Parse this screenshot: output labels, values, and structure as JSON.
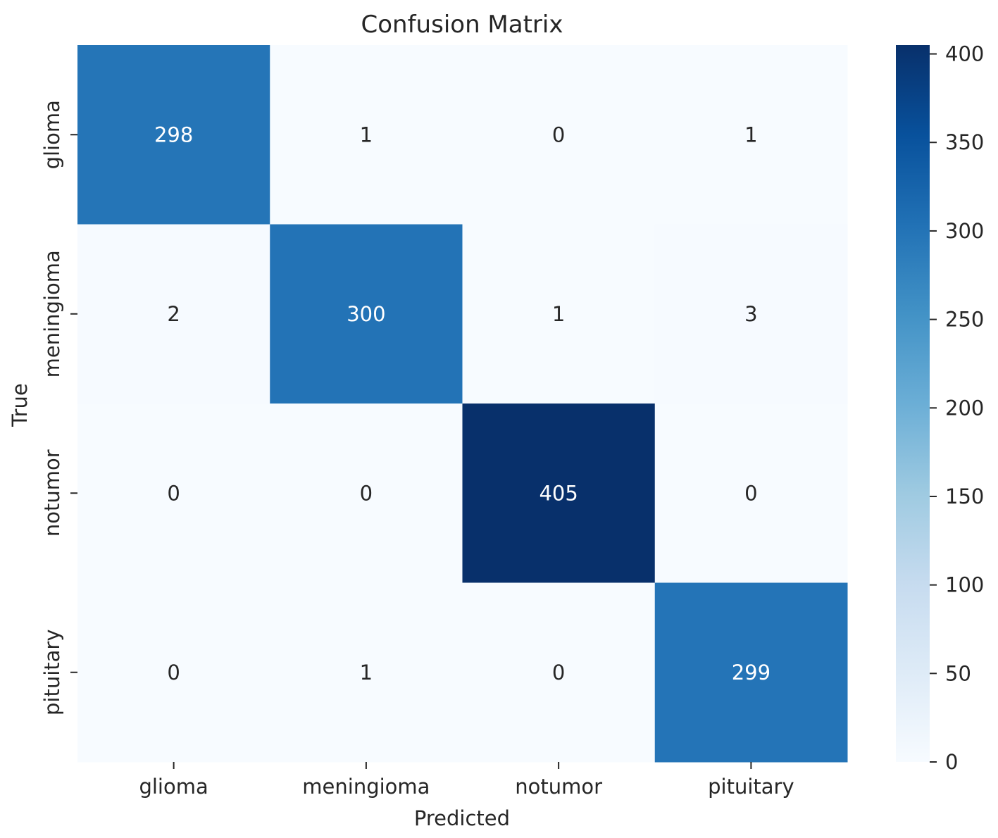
{
  "chart_data": {
    "type": "heatmap",
    "title": "Confusion Matrix",
    "xlabel": "Predicted",
    "ylabel": "True",
    "x_categories": [
      "glioma",
      "meningioma",
      "notumor",
      "pituitary"
    ],
    "y_categories": [
      "glioma",
      "meningioma",
      "notumor",
      "pituitary"
    ],
    "values": [
      [
        298,
        1,
        0,
        1
      ],
      [
        2,
        300,
        1,
        3
      ],
      [
        0,
        0,
        405,
        0
      ],
      [
        0,
        1,
        0,
        299
      ]
    ],
    "colormap": "Blues",
    "vmin": 0,
    "vmax": 405,
    "colorbar_ticks": [
      0,
      50,
      100,
      150,
      200,
      250,
      300,
      350,
      400
    ],
    "colorbar_tick_labels": [
      "0",
      "50",
      "100",
      "150",
      "200",
      "250",
      "300",
      "350",
      "400"
    ],
    "annotations": "cell values",
    "colors": {
      "blues_stops": [
        "#f7fbff",
        "#deebf7",
        "#c6dbef",
        "#9ecae1",
        "#6baed6",
        "#4292c6",
        "#2171b5",
        "#08519c",
        "#08306b"
      ],
      "text_dark": "#262626",
      "text_light": "#ffffff"
    }
  }
}
